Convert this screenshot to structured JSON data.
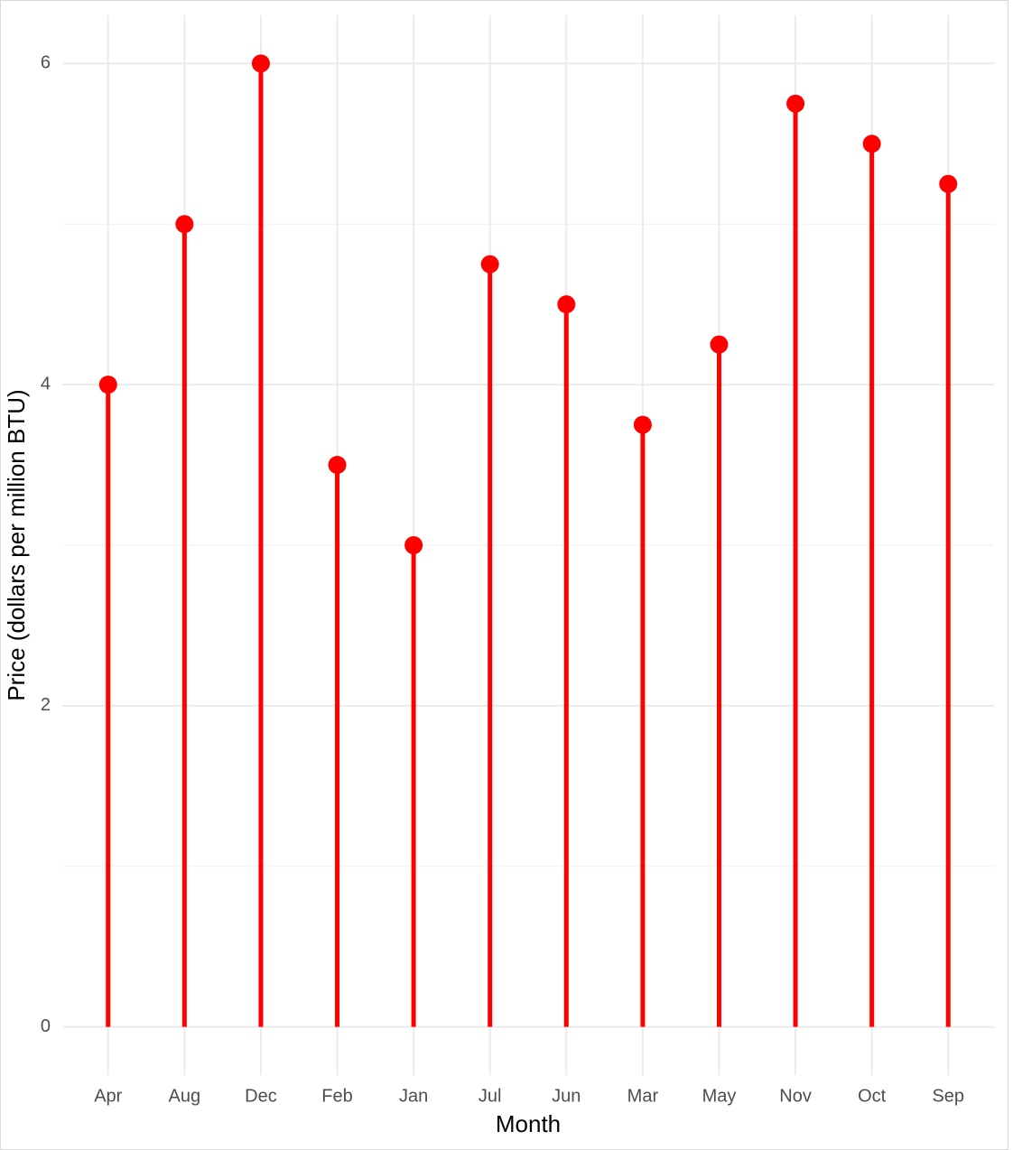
{
  "chart_data": {
    "type": "lollipop",
    "x_label": "Month",
    "y_label": "Price (dollars per million BTU)",
    "categories": [
      "Apr",
      "Aug",
      "Dec",
      "Feb",
      "Jan",
      "Jul",
      "Jun",
      "Mar",
      "May",
      "Nov",
      "Oct",
      "Sep"
    ],
    "values": [
      4,
      5,
      6,
      3.5,
      3,
      4.75,
      4.5,
      3.75,
      4.25,
      5.75,
      5.5,
      5.25
    ],
    "color": "#ff0000",
    "ylim": [
      -0.3,
      6.3
    ],
    "yticks": [
      0,
      2,
      4,
      6
    ],
    "minor_yticks": [
      1,
      3,
      5
    ],
    "grid": true
  }
}
